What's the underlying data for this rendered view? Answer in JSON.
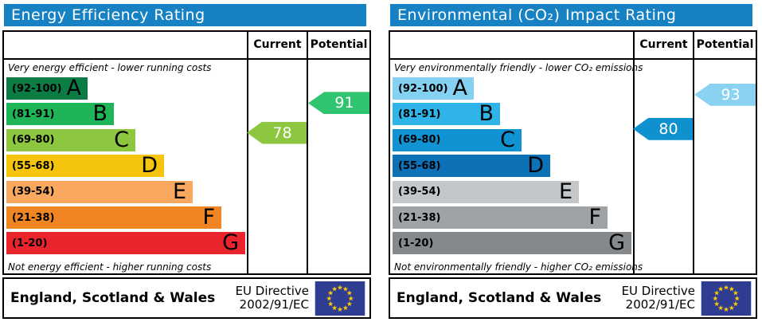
{
  "colors": {
    "header_bg": "#1681c3",
    "flag_bg": "#2e3d91",
    "flag_stars": "#ffcc00",
    "border": "#000000"
  },
  "chart_data": [
    {
      "type": "bar",
      "title": "Energy Efficiency Rating",
      "top_caption": "Very energy efficient - lower running costs",
      "bottom_caption": "Not energy efficient - higher running costs",
      "col_current": "Current",
      "col_potential": "Potential",
      "bands": [
        {
          "letter": "A",
          "label": "(92-100)",
          "min": 92,
          "max": 100,
          "color": "#0c7c45",
          "width_pct": 34
        },
        {
          "letter": "B",
          "label": "(81-91)",
          "min": 81,
          "max": 91,
          "color": "#1fb457",
          "width_pct": 45
        },
        {
          "letter": "C",
          "label": "(69-80)",
          "min": 69,
          "max": 80,
          "color": "#8dc63f",
          "width_pct": 54
        },
        {
          "letter": "D",
          "label": "(55-68)",
          "min": 55,
          "max": 68,
          "color": "#f4c50c",
          "width_pct": 66
        },
        {
          "letter": "E",
          "label": "(39-54)",
          "min": 39,
          "max": 54,
          "color": "#f9a95f",
          "width_pct": 78
        },
        {
          "letter": "F",
          "label": "(21-38)",
          "min": 21,
          "max": 38,
          "color": "#ef8523",
          "width_pct": 90
        },
        {
          "letter": "G",
          "label": "(1-20)",
          "min": 1,
          "max": 20,
          "color": "#e9242c",
          "width_pct": 100
        }
      ],
      "current": {
        "value": 78,
        "color": "#8dc63f"
      },
      "potential": {
        "value": 91,
        "color": "#31c46e"
      },
      "footer_region": "England, Scotland & Wales",
      "eu_directive_line1": "EU Directive",
      "eu_directive_line2": "2002/91/EC"
    },
    {
      "type": "bar",
      "title": "Environmental (CO₂) Impact Rating",
      "top_caption": "Very environmentally friendly - lower CO₂ emissions",
      "bottom_caption": "Not environmentally friendly - higher CO₂ emissions",
      "col_current": "Current",
      "col_potential": "Potential",
      "bands": [
        {
          "letter": "A",
          "label": "(92-100)",
          "min": 92,
          "max": 100,
          "color": "#84d1f1",
          "width_pct": 34
        },
        {
          "letter": "B",
          "label": "(81-91)",
          "min": 81,
          "max": 91,
          "color": "#2fb4e9",
          "width_pct": 45
        },
        {
          "letter": "C",
          "label": "(69-80)",
          "min": 69,
          "max": 80,
          "color": "#0f93d2",
          "width_pct": 54
        },
        {
          "letter": "D",
          "label": "(55-68)",
          "min": 55,
          "max": 68,
          "color": "#0c71b6",
          "width_pct": 66
        },
        {
          "letter": "E",
          "label": "(39-54)",
          "min": 39,
          "max": 54,
          "color": "#c4c7c9",
          "width_pct": 78
        },
        {
          "letter": "F",
          "label": "(21-38)",
          "min": 21,
          "max": 38,
          "color": "#9fa3a6",
          "width_pct": 90
        },
        {
          "letter": "G",
          "label": "(1-20)",
          "min": 1,
          "max": 20,
          "color": "#85898c",
          "width_pct": 100
        }
      ],
      "current": {
        "value": 80,
        "color": "#1091cf"
      },
      "potential": {
        "value": 93,
        "color": "#8ad2f2"
      },
      "footer_region": "England, Scotland & Wales",
      "eu_directive_line1": "EU Directive",
      "eu_directive_line2": "2002/91/EC"
    }
  ]
}
